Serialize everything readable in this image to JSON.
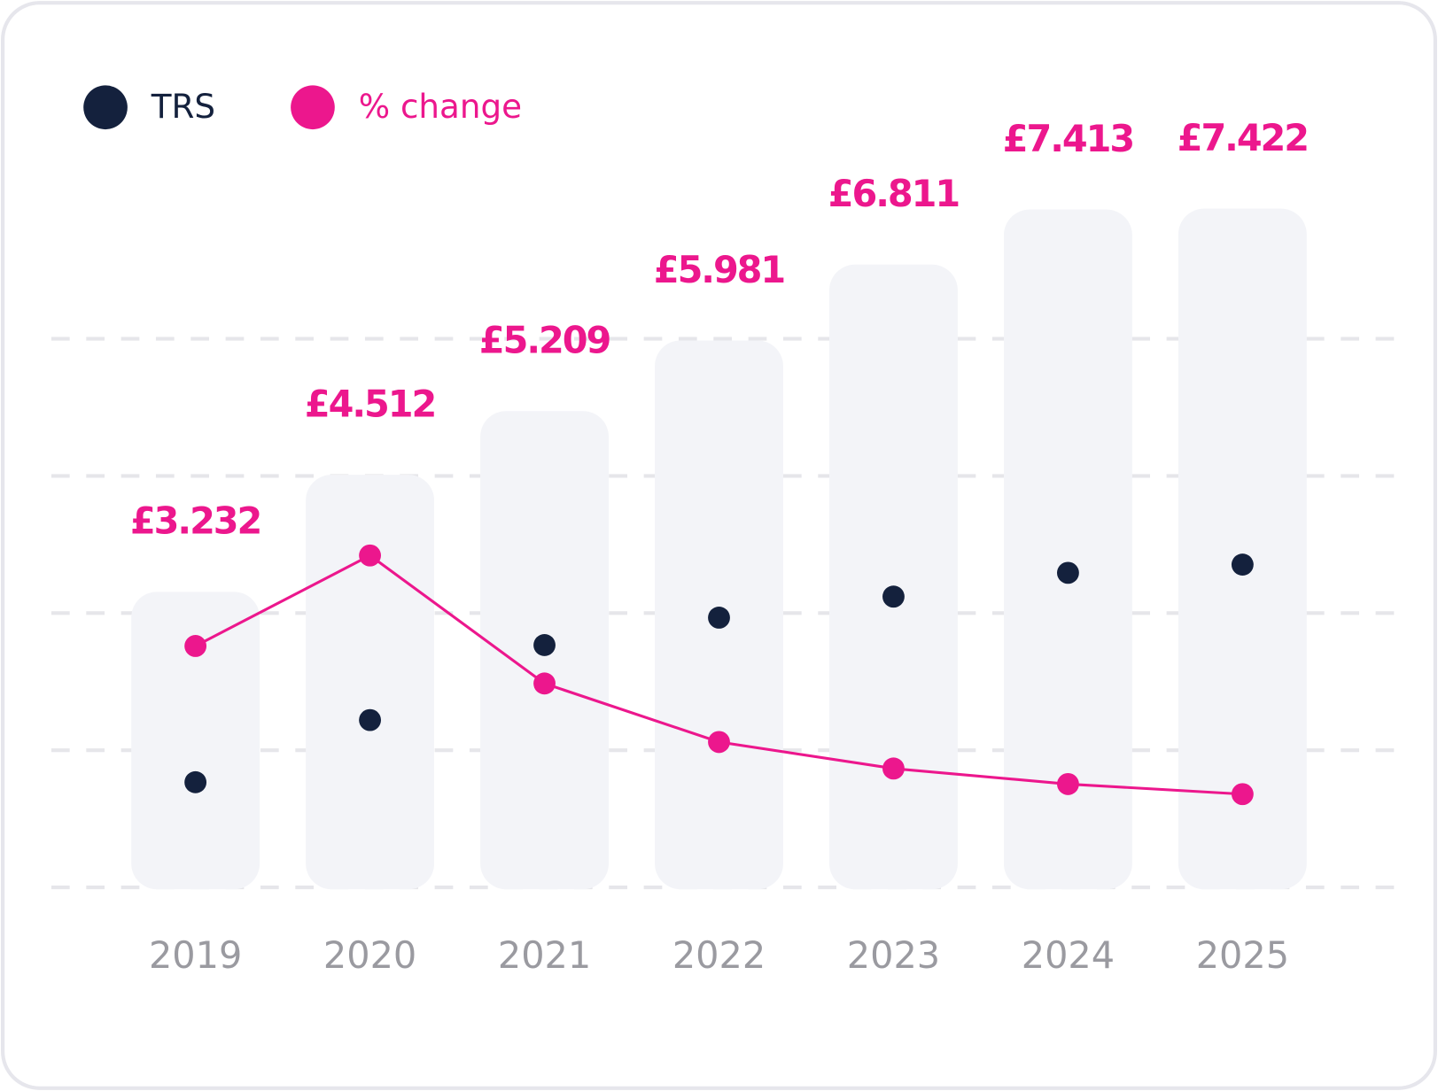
{
  "chart_data": {
    "type": "bar",
    "categories": [
      "2019",
      "2020",
      "2021",
      "2022",
      "2023",
      "2024",
      "2025"
    ],
    "values": [
      3.232,
      4.512,
      5.209,
      5.981,
      6.811,
      7.413,
      7.422
    ],
    "value_labels": [
      "£3.232",
      "£4.512",
      "£5.209",
      "£5.981",
      "£6.811",
      "£7.413",
      "£7.422"
    ],
    "color": "#f3f4f8",
    "label_color": "#ec178d",
    "series": [
      {
        "name": "TRS",
        "type": "scatter",
        "color": "#14213d",
        "values": [
          1.15,
          1.83,
          2.65,
          2.95,
          3.18,
          3.44,
          3.53
        ]
      },
      {
        "name": "% change",
        "type": "line",
        "color": "#ec178d",
        "values": [
          2.64,
          3.63,
          2.23,
          1.59,
          1.3,
          1.13,
          1.02
        ]
      }
    ],
    "ylim": [
      0,
      8.4
    ],
    "yticks": [
      0,
      1.5,
      3,
      4.5,
      6
    ],
    "grid": true
  }
}
